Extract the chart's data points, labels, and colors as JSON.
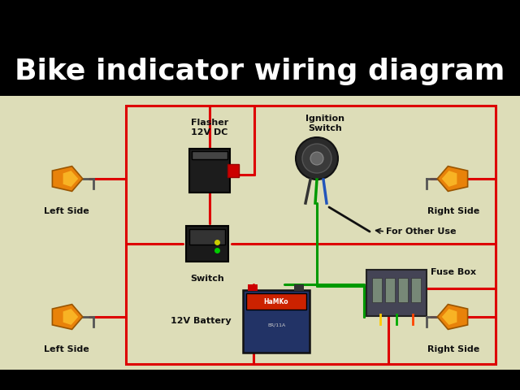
{
  "title": "Bike indicator wiring diagram",
  "title_color": "#FFFFFF",
  "title_bg": "#000000",
  "title_fontsize": 26,
  "diagram_bg": "#ddddb8",
  "outer_bg": "#000000",
  "border_color": "#111111",
  "red_wire": "#dd0000",
  "green_wire": "#009900",
  "black_wire": "#111111",
  "flasher_label": "Flasher\n12V DC",
  "ignition_label": "Ignition\nSwitch",
  "switch_label": "Switch",
  "battery_label": "12V Battery",
  "fusebox_label": "Fuse Box",
  "other_label": "For Other Use",
  "left_side_label": "Left Side",
  "right_side_label": "Right Side",
  "label_fontsize": 8,
  "label_fontweight": "bold"
}
